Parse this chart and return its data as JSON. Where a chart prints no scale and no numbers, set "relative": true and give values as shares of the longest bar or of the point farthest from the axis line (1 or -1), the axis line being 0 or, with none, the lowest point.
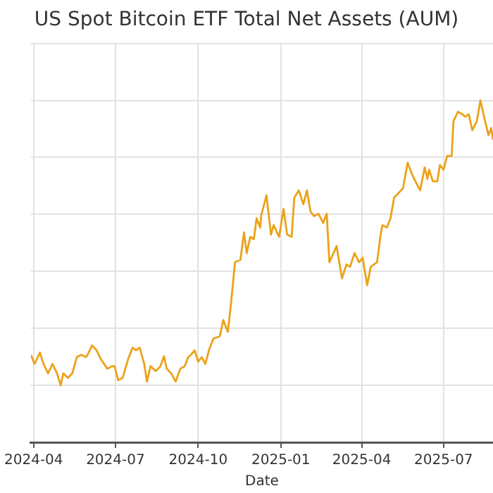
{
  "chart_data": {
    "type": "line",
    "title": "US Spot Bitcoin ETF Total Net Assets (AUM)",
    "xlabel": "Date",
    "relative": true,
    "grid": true,
    "tick_labels": "x",
    "marker": "none",
    "line_style": "solid",
    "xlim": [
      "2024-03-29",
      "2025-08-25"
    ],
    "xticks": [
      {
        "value": "2024-04-01",
        "label": "2024-04"
      },
      {
        "value": "2024-07-01",
        "label": "2024-07"
      },
      {
        "value": "2024-10-01",
        "label": "2024-10"
      },
      {
        "value": "2025-01-01",
        "label": "2025-01"
      },
      {
        "value": "2025-04-01",
        "label": "2025-04"
      },
      {
        "value": "2025-07-01",
        "label": "2025-07"
      }
    ],
    "x": [
      "2024-03-29",
      "2024-04-02",
      "2024-04-08",
      "2024-04-12",
      "2024-04-17",
      "2024-04-22",
      "2024-04-27",
      "2024-05-01",
      "2024-05-04",
      "2024-05-09",
      "2024-05-14",
      "2024-05-19",
      "2024-05-24",
      "2024-05-29",
      "2024-05-31",
      "2024-06-05",
      "2024-06-10",
      "2024-06-15",
      "2024-06-22",
      "2024-06-27",
      "2024-06-30",
      "2024-07-04",
      "2024-07-09",
      "2024-07-15",
      "2024-07-20",
      "2024-07-24",
      "2024-07-28",
      "2024-08-02",
      "2024-08-05",
      "2024-08-09",
      "2024-08-15",
      "2024-08-20",
      "2024-08-24",
      "2024-08-27",
      "2024-09-01",
      "2024-09-06",
      "2024-09-11",
      "2024-09-16",
      "2024-09-20",
      "2024-09-23",
      "2024-09-27",
      "2024-10-01",
      "2024-10-05",
      "2024-10-09",
      "2024-10-13",
      "2024-10-18",
      "2024-10-25",
      "2024-10-29",
      "2024-11-03",
      "2024-11-06",
      "2024-11-11",
      "2024-11-17",
      "2024-11-21",
      "2024-11-24",
      "2024-11-28",
      "2024-12-02",
      "2024-12-05",
      "2024-12-09",
      "2024-12-10",
      "2024-12-16",
      "2024-12-21",
      "2024-12-24",
      "2024-12-30",
      "2025-01-04",
      "2025-01-08",
      "2025-01-13",
      "2025-01-16",
      "2025-01-21",
      "2025-01-26",
      "2025-01-30",
      "2025-02-03",
      "2025-02-07",
      "2025-02-12",
      "2025-02-17",
      "2025-02-21",
      "2025-02-24",
      "2025-03-04",
      "2025-03-10",
      "2025-03-15",
      "2025-03-19",
      "2025-03-24",
      "2025-03-29",
      "2025-04-02",
      "2025-04-07",
      "2025-04-11",
      "2025-04-18",
      "2025-04-22",
      "2025-04-24",
      "2025-04-29",
      "2025-05-03",
      "2025-05-07",
      "2025-05-12",
      "2025-05-17",
      "2025-05-22",
      "2025-05-27",
      "2025-06-01",
      "2025-06-05",
      "2025-06-10",
      "2025-06-13",
      "2025-06-15",
      "2025-06-19",
      "2025-06-24",
      "2025-06-27",
      "2025-07-01",
      "2025-07-05",
      "2025-07-10",
      "2025-07-12",
      "2025-07-17",
      "2025-07-22",
      "2025-07-25",
      "2025-07-29",
      "2025-08-02",
      "2025-08-07",
      "2025-08-11",
      "2025-08-15",
      "2025-08-20",
      "2025-08-23",
      "2025-08-25"
    ],
    "series": [
      {
        "color": "#eba21a",
        "values": [
          0.107,
          0.075,
          0.115,
          0.075,
          0.042,
          0.075,
          0.042,
          0,
          0.042,
          0.026,
          0.042,
          0.099,
          0.107,
          0.099,
          0.107,
          0.14,
          0.123,
          0.091,
          0.058,
          0.067,
          0.067,
          0.018,
          0.026,
          0.091,
          0.132,
          0.123,
          0.132,
          0.075,
          0.013,
          0.067,
          0.05,
          0.067,
          0.102,
          0.058,
          0.042,
          0.013,
          0.058,
          0.067,
          0.099,
          0.107,
          0.123,
          0.083,
          0.099,
          0.075,
          0.123,
          0.164,
          0.172,
          0.229,
          0.188,
          0.27,
          0.432,
          0.44,
          0.537,
          0.464,
          0.521,
          0.513,
          0.586,
          0.554,
          0.594,
          0.667,
          0.529,
          0.562,
          0.521,
          0.619,
          0.529,
          0.521,
          0.659,
          0.684,
          0.635,
          0.684,
          0.61,
          0.594,
          0.602,
          0.57,
          0.602,
          0.432,
          0.489,
          0.375,
          0.424,
          0.416,
          0.464,
          0.432,
          0.448,
          0.351,
          0.416,
          0.432,
          0.529,
          0.562,
          0.554,
          0.586,
          0.659,
          0.675,
          0.692,
          0.781,
          0.74,
          0.708,
          0.684,
          0.765,
          0.724,
          0.757,
          0.716,
          0.716,
          0.773,
          0.757,
          0.805,
          0.805,
          0.927,
          0.96,
          0.951,
          0.943,
          0.951,
          0.895,
          0.927,
          1,
          0.943,
          0.878,
          0.903,
          0.862
        ]
      }
    ]
  }
}
